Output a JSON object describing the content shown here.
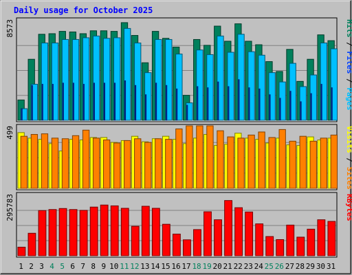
{
  "colors": {
    "background": "#c0c0c0",
    "title": "#0000ff",
    "hits": "#00805c",
    "files": "#0040ff",
    "pages": "#00c0ff",
    "visits": "#ffff00",
    "sites": "#ff8000",
    "kbytes": "#ff0000",
    "weekend_day": "#00805c",
    "weekday": "#000000"
  },
  "chart_data": {
    "type": "bar",
    "title": "Daily usage for October 2025",
    "categories": [
      "1",
      "2",
      "3",
      "4",
      "5",
      "6",
      "7",
      "8",
      "9",
      "10",
      "11",
      "12",
      "13",
      "14",
      "15",
      "16",
      "17",
      "18",
      "19",
      "20",
      "21",
      "22",
      "23",
      "24",
      "25",
      "26",
      "27",
      "28",
      "29",
      "30",
      "31"
    ],
    "weekend_days": [
      "4",
      "5",
      "11",
      "12",
      "18",
      "19",
      "25",
      "26"
    ],
    "panels": [
      {
        "id": "hits-files-pages",
        "ymax_label": "8573",
        "ymax": 8573,
        "right_labels": [
          {
            "text": "Hits",
            "color": "#00805c"
          },
          {
            "text": " / ",
            "color": "#000000"
          },
          {
            "text": "Files",
            "color": "#0040ff"
          },
          {
            "text": " / ",
            "color": "#000000"
          },
          {
            "text": "Pages",
            "color": "#00c0ff"
          }
        ],
        "series": [
          {
            "name": "Hits",
            "color": "#00805c",
            "values": [
              1750,
              5250,
              7400,
              7450,
              7650,
              7600,
              7450,
              7700,
              7700,
              7650,
              8400,
              7300,
              4950,
              7650,
              7050,
              6300,
              2150,
              6950,
              6450,
              8100,
              6800,
              8300,
              6800,
              6500,
              5050,
              4200,
              6100,
              3350,
              5250,
              7350,
              6850
            ]
          },
          {
            "name": "Files",
            "color": "#0040ff",
            "values": [
              1000,
              3000,
              3100,
              3100,
              3200,
              3200,
              3100,
              3200,
              3200,
              3200,
              3400,
              3000,
              2200,
              3200,
              3000,
              2700,
              1300,
              2900,
              2800,
              3300,
              2900,
              3500,
              2800,
              2700,
              2200,
              1900,
              2500,
              1600,
              2300,
              3100,
              2800
            ]
          },
          {
            "name": "Pages",
            "color": "#00c0ff",
            "values": [
              1000,
              3100,
              6650,
              6650,
              6950,
              6950,
              7100,
              7250,
              7050,
              7100,
              7900,
              6650,
              4100,
              6950,
              6950,
              5700,
              1500,
              6050,
              5650,
              7250,
              5850,
              7400,
              5900,
              5600,
              4100,
              3300,
              4900,
              2900,
              3900,
              6650,
              6150
            ]
          }
        ]
      },
      {
        "id": "visits-sites",
        "ymax_label": "499",
        "ymax": 499,
        "right_labels": [
          {
            "text": "Visits",
            "color": "#ffff00"
          },
          {
            "text": " / ",
            "color": "#000000"
          },
          {
            "text": "Sites",
            "color": "#ff8000"
          }
        ],
        "series": [
          {
            "name": "Visits",
            "color": "#ffff00",
            "values": [
              455,
              410,
              400,
              365,
              305,
              400,
              395,
              415,
              415,
              375,
              390,
              425,
              380,
              405,
              425,
              400,
              365,
              410,
              440,
              350,
              360,
              450,
              410,
              400,
              370,
              410,
              355,
              350,
              420,
              395,
              410
            ]
          },
          {
            "name": "Sites",
            "color": "#ff8000",
            "values": [
              425,
              440,
              445,
              410,
              405,
              430,
              475,
              410,
              395,
              370,
              390,
              405,
              375,
              405,
              400,
              485,
              530,
              555,
              515,
              470,
              420,
              410,
              435,
              460,
              415,
              480,
              385,
              425,
              385,
              410,
              435
            ]
          }
        ]
      },
      {
        "id": "kbytes",
        "ymax_label": "295783",
        "ymax": 295783,
        "right_labels": [
          {
            "text": "KBytes",
            "color": "#ff0000"
          }
        ],
        "series": [
          {
            "name": "KBytes",
            "color": "#ff0000",
            "values": [
              42000,
              110000,
              221000,
              226000,
              231000,
              226000,
              222000,
              238000,
              248000,
              244000,
              232000,
              144000,
              242000,
              232000,
              154000,
              106000,
              78000,
              128000,
              215000,
              176000,
              270000,
              235000,
              214000,
              156000,
              94000,
              79000,
              150000,
              91000,
              130000,
              176000,
              168000
            ]
          }
        ]
      }
    ]
  }
}
